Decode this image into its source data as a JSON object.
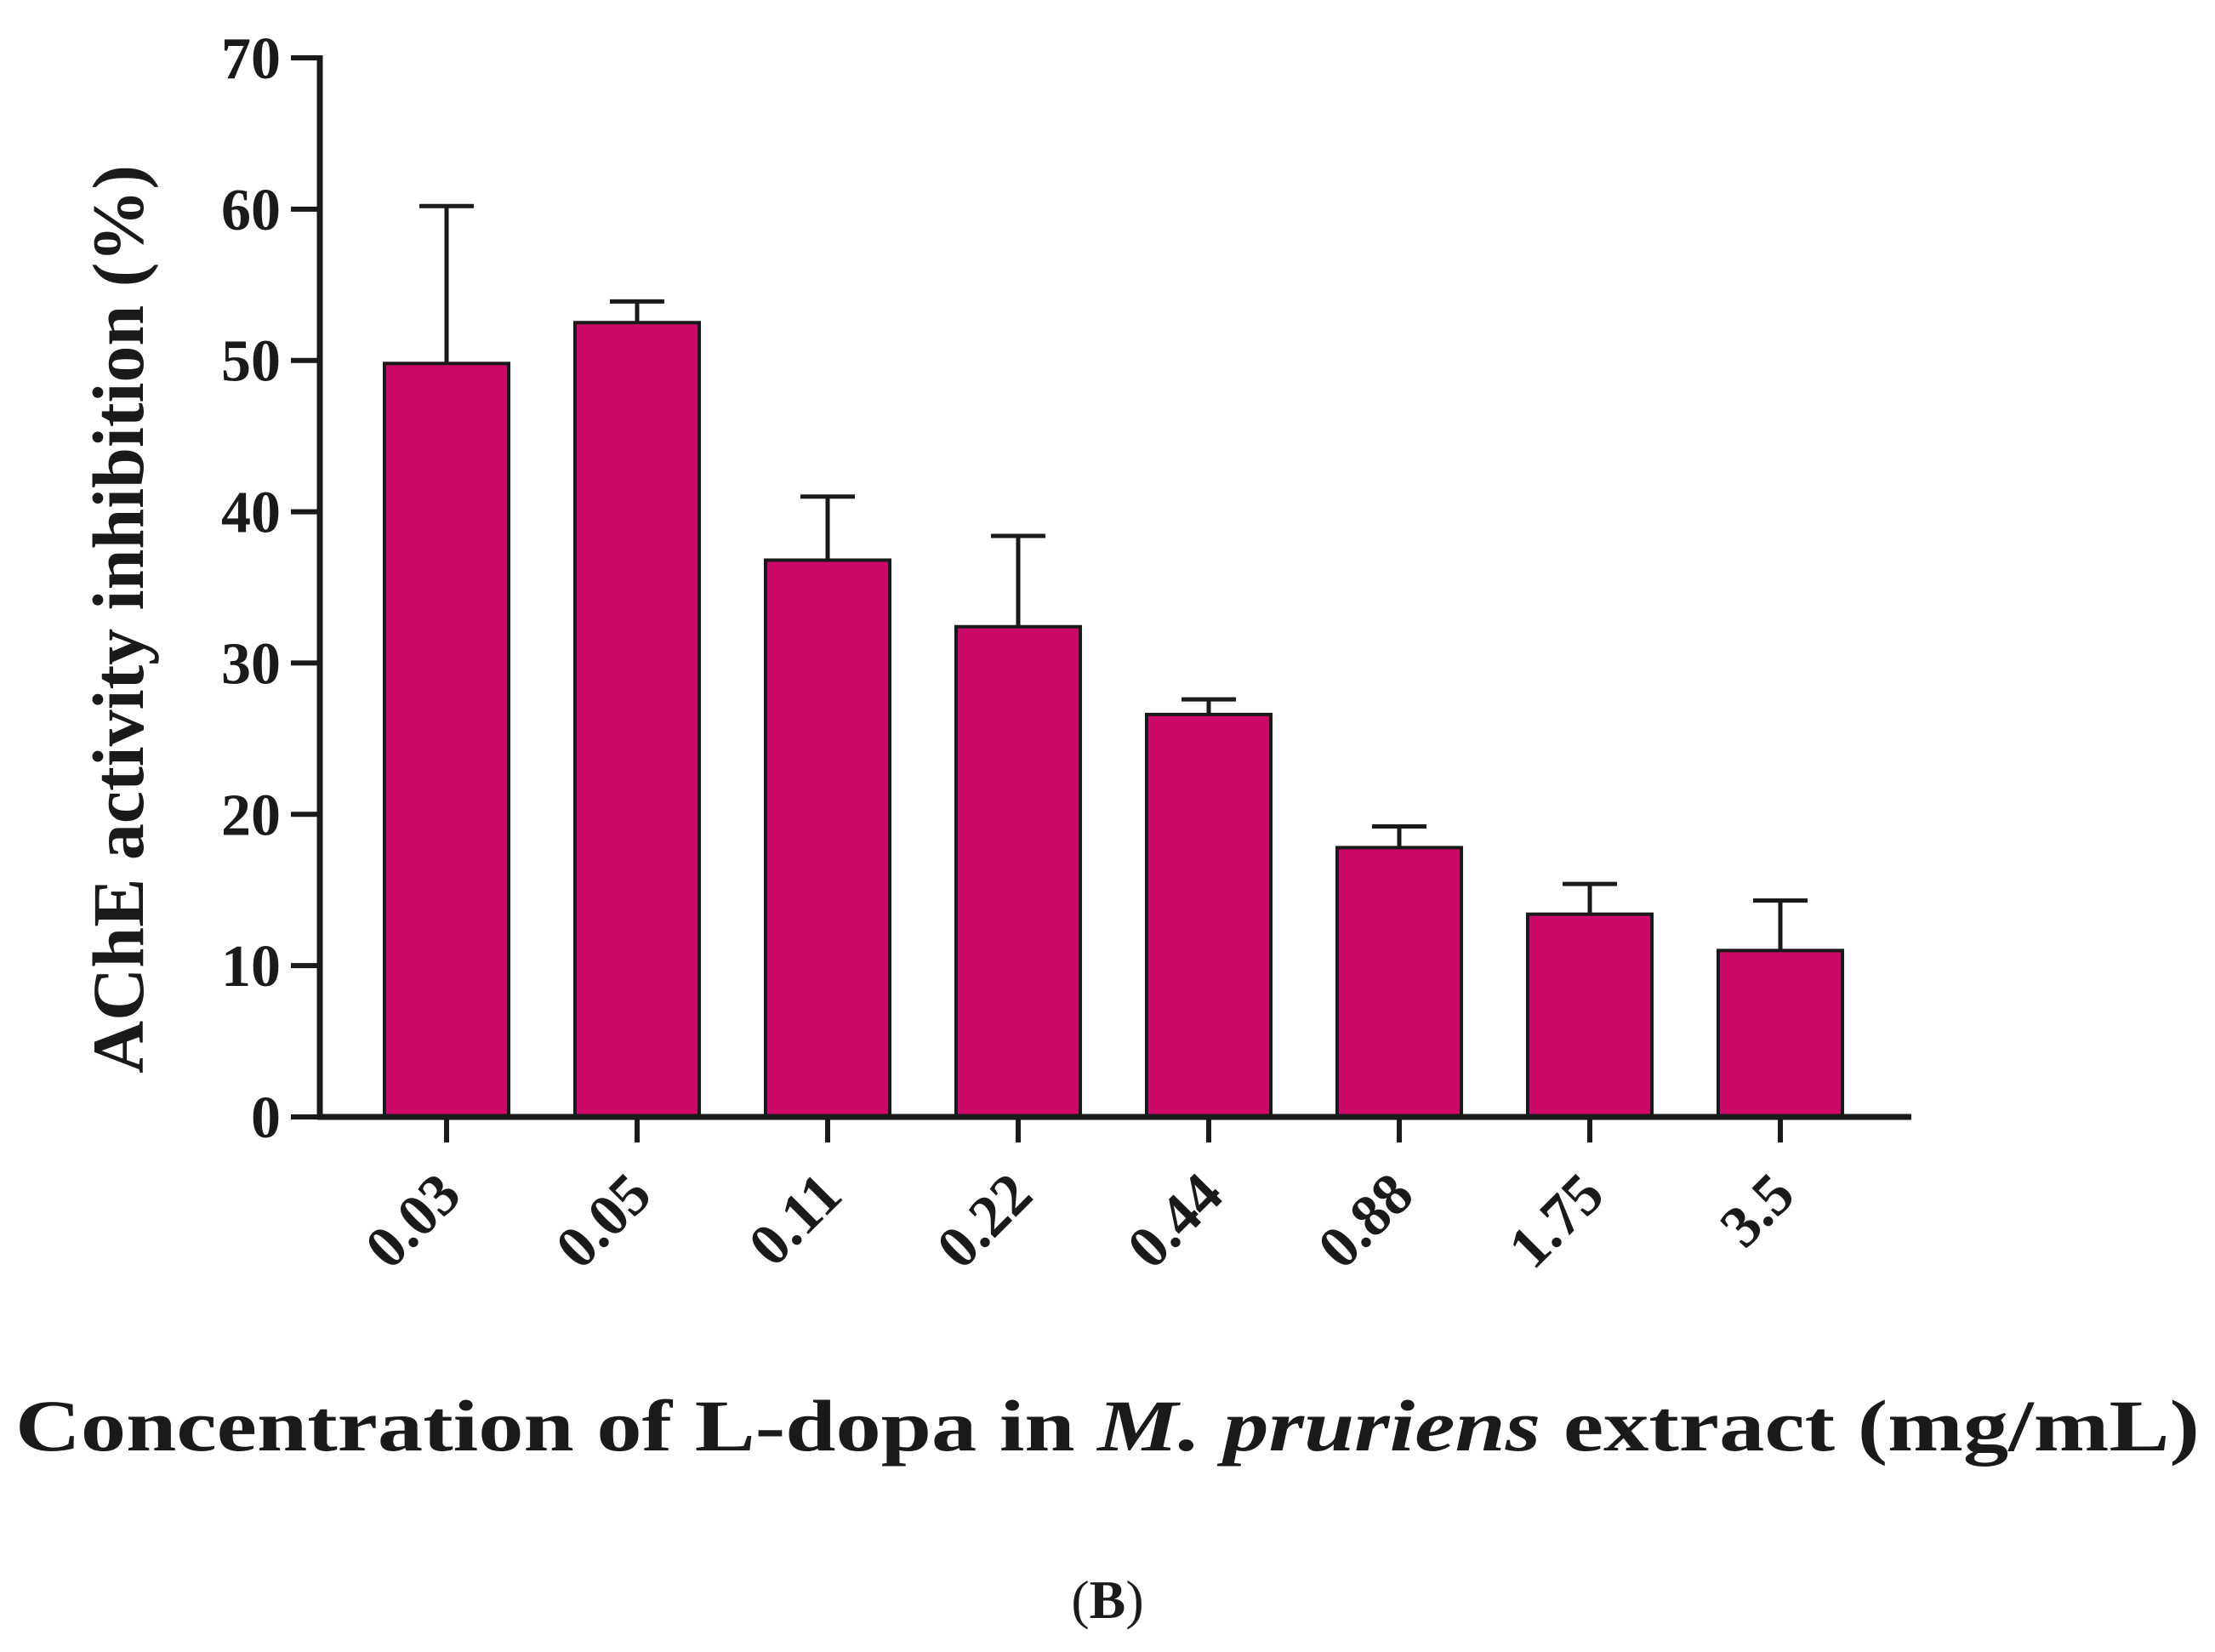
{
  "chart_data": {
    "type": "bar",
    "title": "",
    "panel_label": {
      "open": "(",
      "letter": "B",
      "close": ")"
    },
    "ylabel": "AChE activity inhibition (%)",
    "xlabel_parts": [
      {
        "text": "Concentration of L-dopa in ",
        "italic": false
      },
      {
        "text": "M. pruriens",
        "italic": true
      },
      {
        "text": " extract (mg/mL)",
        "italic": false
      }
    ],
    "categories": [
      "0.03",
      "0.05",
      "0.11",
      "0.22",
      "0.44",
      "0.88",
      "1.75",
      "3.5"
    ],
    "values": [
      49.8,
      52.5,
      36.8,
      32.4,
      26.6,
      17.8,
      13.4,
      11.0
    ],
    "errors": [
      10.4,
      1.4,
      4.2,
      6.0,
      1.0,
      1.4,
      2.0,
      3.3
    ],
    "ylim": [
      0,
      70
    ],
    "yticks": [
      0,
      10,
      20,
      30,
      40,
      50,
      60,
      70
    ],
    "grid": false,
    "legend": "none",
    "bar_color": "#cc0966"
  }
}
